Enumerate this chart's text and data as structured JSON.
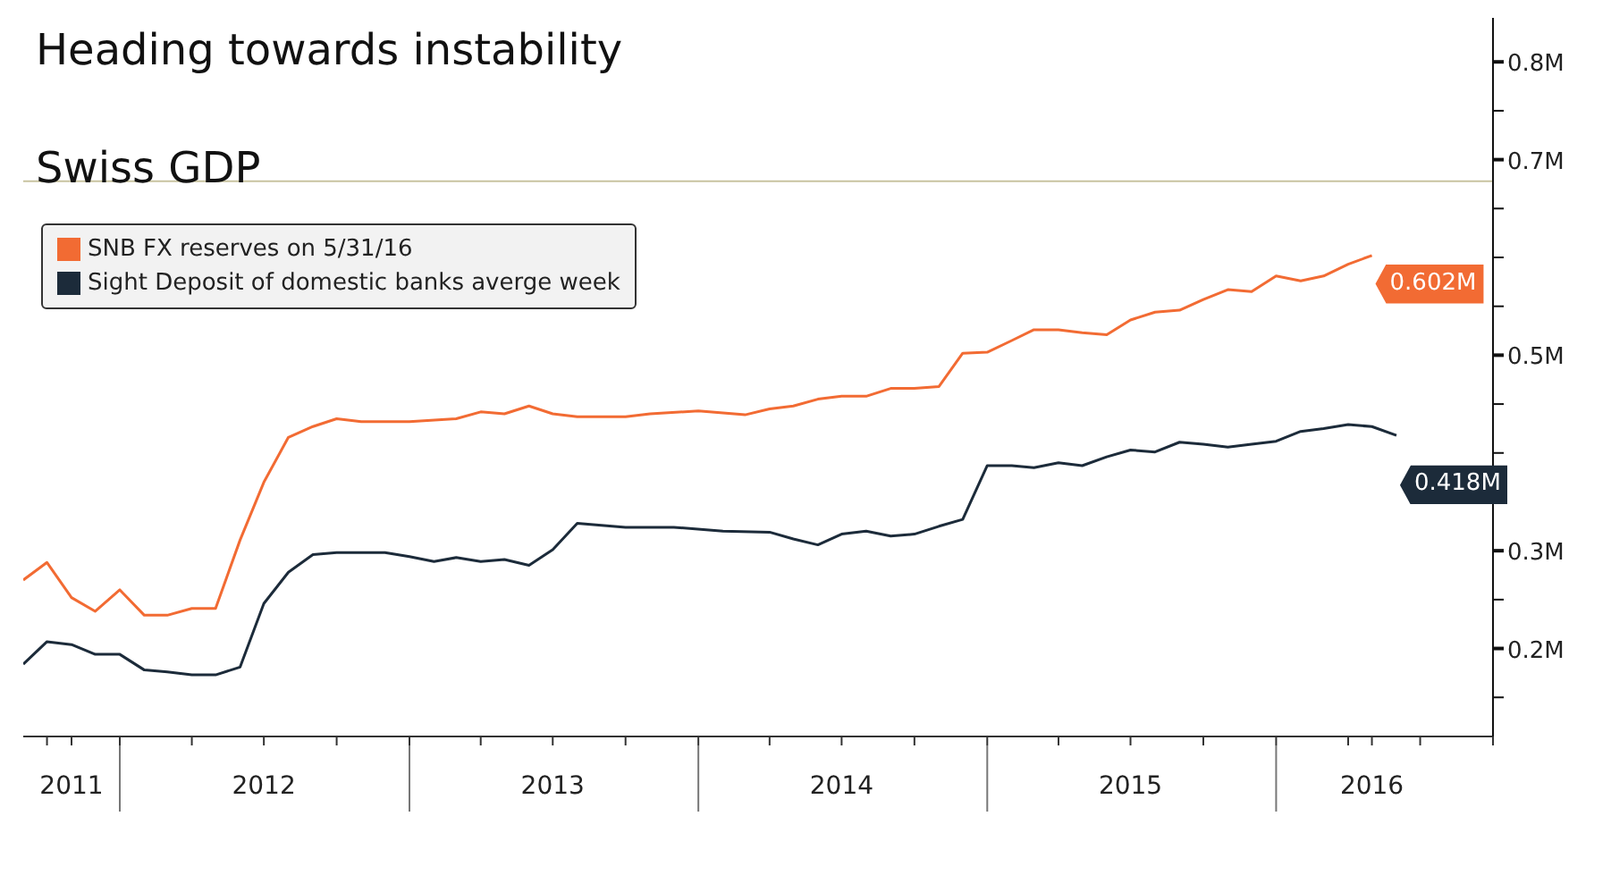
{
  "chart_data": {
    "type": "line",
    "title": "Heading towards instability",
    "subtitle": "Swiss GDP",
    "xlim": [
      "2011-09",
      "2016-10"
    ],
    "xticks": [
      {
        "value": "2011-10",
        "label": null
      },
      {
        "value": "2011-11",
        "label": "2011"
      },
      {
        "value": "2012-01",
        "label": null
      },
      {
        "value": "2012-04",
        "label": null
      },
      {
        "value": "2012-07",
        "label": "2012"
      },
      {
        "value": "2012-10",
        "label": null
      },
      {
        "value": "2013-01",
        "label": null
      },
      {
        "value": "2013-04",
        "label": null
      },
      {
        "value": "2013-07",
        "label": "2013"
      },
      {
        "value": "2013-10",
        "label": null
      },
      {
        "value": "2014-01",
        "label": null
      },
      {
        "value": "2014-04",
        "label": null
      },
      {
        "value": "2014-07",
        "label": "2014"
      },
      {
        "value": "2014-10",
        "label": null
      },
      {
        "value": "2015-01",
        "label": null
      },
      {
        "value": "2015-04",
        "label": null
      },
      {
        "value": "2015-07",
        "label": "2015"
      },
      {
        "value": "2015-10",
        "label": null
      },
      {
        "value": "2016-01",
        "label": null
      },
      {
        "value": "2016-04",
        "label": null
      },
      {
        "value": "2016-05",
        "label": "2016"
      },
      {
        "value": "2016-07",
        "label": null
      },
      {
        "value": "2016-10",
        "label": null
      }
    ],
    "ylim": [
      0.11,
      0.845
    ],
    "yticks": [
      {
        "value": 0.15,
        "label": null
      },
      {
        "value": 0.2,
        "label": "0.2M"
      },
      {
        "value": 0.25,
        "label": null
      },
      {
        "value": 0.3,
        "label": "0.3M"
      },
      {
        "value": 0.35,
        "label": null
      },
      {
        "value": 0.4,
        "label": null
      },
      {
        "value": 0.45,
        "label": null
      },
      {
        "value": 0.5,
        "label": "0.5M"
      },
      {
        "value": 0.55,
        "label": null
      },
      {
        "value": 0.6,
        "label": null
      },
      {
        "value": 0.65,
        "label": null
      },
      {
        "value": 0.7,
        "label": "0.7M"
      },
      {
        "value": 0.75,
        "label": null
      },
      {
        "value": 0.8,
        "label": "0.8M"
      }
    ],
    "grid": false,
    "legend": "top left",
    "marker": "none",
    "line_style": "solid",
    "series": [
      {
        "name": "SNB FX reserves on 5/31/16",
        "color": "#f26b33",
        "x": [
          "2011-09",
          "2011-10",
          "2011-11",
          "2011-12",
          "2012-01",
          "2012-02",
          "2012-03",
          "2012-04",
          "2012-05",
          "2012-06",
          "2012-07",
          "2012-08",
          "2012-09",
          "2012-10",
          "2012-11",
          "2013-01",
          "2013-03",
          "2013-04",
          "2013-05",
          "2013-06",
          "2013-07",
          "2013-08",
          "2013-10",
          "2013-11",
          "2014-01",
          "2014-03",
          "2014-04",
          "2014-05",
          "2014-06",
          "2014-07",
          "2014-08",
          "2014-09",
          "2014-10",
          "2014-11",
          "2014-12",
          "2015-01",
          "2015-02",
          "2015-03",
          "2015-04",
          "2015-05",
          "2015-06",
          "2015-07",
          "2015-08",
          "2015-09",
          "2015-10",
          "2015-11",
          "2015-12",
          "2016-01",
          "2016-02",
          "2016-03",
          "2016-04",
          "2016-05"
        ],
        "values": [
          0.27,
          0.288,
          0.252,
          0.238,
          0.26,
          0.234,
          0.234,
          0.241,
          0.241,
          0.311,
          0.37,
          0.416,
          0.427,
          0.435,
          0.432,
          0.432,
          0.435,
          0.442,
          0.44,
          0.448,
          0.44,
          0.437,
          0.437,
          0.44,
          0.443,
          0.439,
          0.445,
          0.448,
          0.455,
          0.458,
          0.458,
          0.466,
          0.466,
          0.468,
          0.502,
          0.503,
          0.515,
          0.526,
          0.526,
          0.523,
          0.521,
          0.536,
          0.544,
          0.546,
          0.557,
          0.567,
          0.565,
          0.581,
          0.576,
          0.581,
          0.593,
          0.602
        ],
        "value_labels": [
          null,
          null,
          null,
          null,
          null,
          null,
          null,
          null,
          null,
          null,
          null,
          null,
          null,
          null,
          null,
          null,
          null,
          null,
          null,
          null,
          null,
          null,
          null,
          null,
          null,
          null,
          null,
          null,
          null,
          null,
          null,
          null,
          null,
          null,
          null,
          null,
          null,
          null,
          null,
          null,
          null,
          null,
          null,
          null,
          null,
          null,
          null,
          null,
          null,
          null,
          null,
          "0.602M"
        ]
      },
      {
        "name": "Sight Deposit of domestic banks averge week",
        "color": "#1c2b3a",
        "x": [
          "2011-09",
          "2011-10",
          "2011-11",
          "2011-12",
          "2012-01",
          "2012-02",
          "2012-03",
          "2012-04",
          "2012-05",
          "2012-06",
          "2012-07",
          "2012-08",
          "2012-09",
          "2012-10",
          "2012-12",
          "2013-01",
          "2013-02",
          "2013-03",
          "2013-04",
          "2013-05",
          "2013-06",
          "2013-07",
          "2013-08",
          "2013-10",
          "2013-12",
          "2014-02",
          "2014-04",
          "2014-05",
          "2014-06",
          "2014-07",
          "2014-08",
          "2014-09",
          "2014-10",
          "2014-11",
          "2014-12",
          "2015-01",
          "2015-02",
          "2015-03",
          "2015-04",
          "2015-05",
          "2015-06",
          "2015-07",
          "2015-08",
          "2015-09",
          "2015-10",
          "2015-11",
          "2015-12",
          "2016-01",
          "2016-02",
          "2016-03",
          "2016-04",
          "2016-05",
          "2016-06"
        ],
        "values": [
          0.184,
          0.207,
          0.204,
          0.194,
          0.194,
          0.178,
          0.176,
          0.173,
          0.173,
          0.181,
          0.246,
          0.278,
          0.296,
          0.298,
          0.298,
          0.294,
          0.289,
          0.293,
          0.289,
          0.291,
          0.285,
          0.301,
          0.328,
          0.324,
          0.324,
          0.32,
          0.319,
          0.312,
          0.306,
          0.317,
          0.32,
          0.315,
          0.317,
          0.325,
          0.332,
          0.387,
          0.387,
          0.385,
          0.39,
          0.387,
          0.396,
          0.403,
          0.401,
          0.411,
          0.409,
          0.406,
          0.409,
          0.412,
          0.422,
          0.425,
          0.429,
          0.427,
          0.418
        ],
        "value_labels": [
          null,
          null,
          null,
          null,
          null,
          null,
          null,
          null,
          null,
          null,
          null,
          null,
          null,
          null,
          null,
          null,
          null,
          null,
          null,
          null,
          null,
          null,
          null,
          null,
          null,
          null,
          null,
          null,
          null,
          null,
          null,
          null,
          null,
          null,
          null,
          null,
          null,
          null,
          null,
          null,
          null,
          null,
          null,
          null,
          null,
          null,
          null,
          null,
          null,
          null,
          null,
          null,
          "0.418M"
        ]
      }
    ],
    "ref_lines": [
      {
        "axis": "y",
        "value": 0.678,
        "color": "#c8c3a0"
      }
    ]
  }
}
